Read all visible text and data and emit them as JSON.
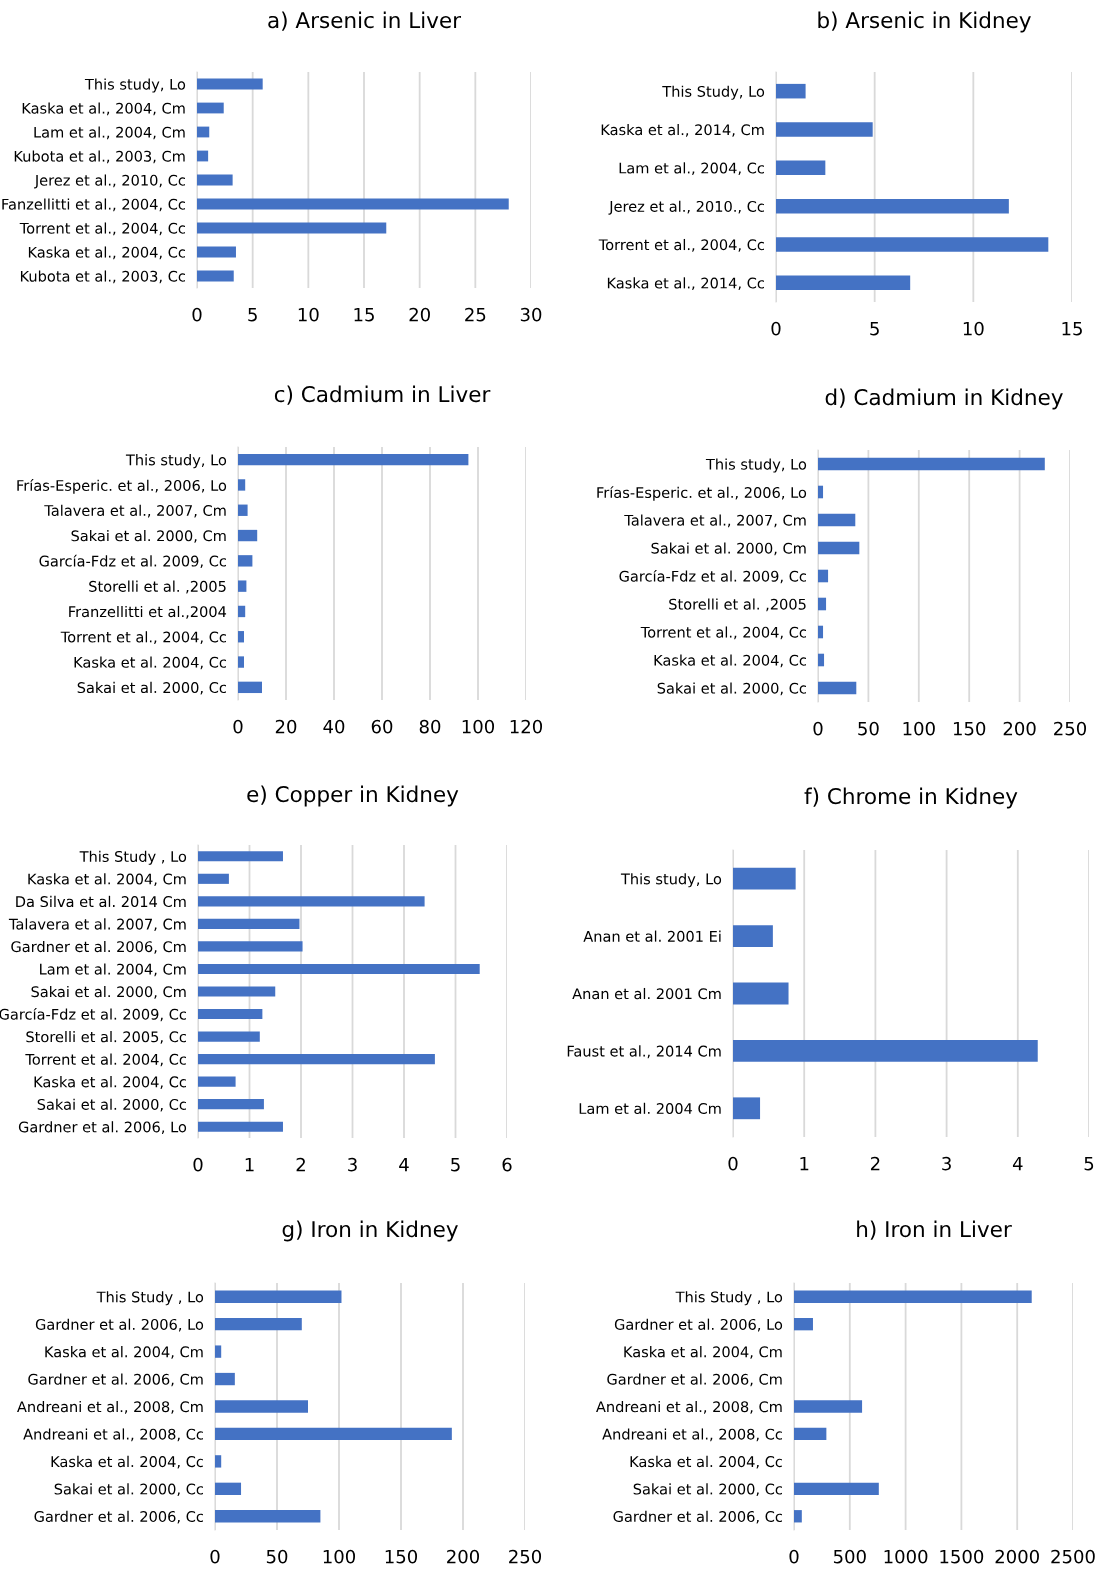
{
  "chart_data": [
    {
      "type": "bar",
      "orientation": "horizontal",
      "title": "a) Arsenic in Liver",
      "categories": [
        "This study, Lo",
        "Kaska et al., 2004, Cm",
        "Lam et al., 2004, Cm",
        "Kubota et al., 2003, Cm",
        "Jerez et al., 2010, Cc",
        "Fanzellitti et al., 2004, Cc",
        "Torrent et al., 2004, Cc",
        "Kaska et al., 2004, Cc",
        "Kubota et al., 2003, Cc"
      ],
      "values": [
        5.9,
        2.4,
        1.1,
        1.0,
        3.2,
        28,
        17,
        3.5,
        3.3
      ],
      "color": "#4472c4",
      "xlim": [
        0,
        30
      ],
      "xticks": [
        0,
        5,
        10,
        15,
        20,
        25,
        30
      ],
      "grid": "x"
    },
    {
      "type": "bar",
      "orientation": "horizontal",
      "title": "b) Arsenic in Kidney",
      "categories": [
        "This Study, Lo",
        "Kaska et al., 2014, Cm",
        "Lam et al., 2004, Cc",
        "Jerez et al., 2010., Cc",
        "Torrent et al., 2004, Cc",
        "Kaska et al., 2014, Cc"
      ],
      "values": [
        1.5,
        4.9,
        2.5,
        11.8,
        13.8,
        6.8
      ],
      "color": "#4472c4",
      "xlim": [
        0,
        15
      ],
      "xticks": [
        0,
        5,
        10,
        15
      ],
      "grid": "x"
    },
    {
      "type": "bar",
      "orientation": "horizontal",
      "title": "c) Cadmium in Liver",
      "categories": [
        "This study, Lo",
        "Frías-Esperic. et al., 2006, Lo",
        "Talavera et al., 2007, Cm",
        "Sakai et al. 2000, Cm",
        "García-Fdz et al. 2009, Cc",
        "Storelli et al. ,2005",
        "Franzellitti et al.,2004",
        "Torrent et al., 2004, Cc",
        "Kaska et al. 2004, Cc",
        "Sakai et al. 2000, Cc"
      ],
      "values": [
        96,
        3,
        4,
        8,
        6,
        3.5,
        3,
        2.5,
        2.5,
        10
      ],
      "color": "#4472c4",
      "xlim": [
        0,
        120
      ],
      "xticks": [
        0,
        20,
        40,
        60,
        80,
        100,
        120
      ],
      "grid": "x"
    },
    {
      "type": "bar",
      "orientation": "horizontal",
      "title": "d) Cadmium in Kidney",
      "categories": [
        "This study, Lo",
        "Frías-Esperic. et al., 2006, Lo",
        "Talavera et al., 2007, Cm",
        "Sakai et al. 2000, Cm",
        "García-Fdz et al. 2009, Cc",
        "Storelli et al. ,2005",
        "Torrent et al., 2004, Cc",
        "Kaska et al. 2004, Cc",
        "Sakai et al. 2000, Cc"
      ],
      "values": [
        225,
        5,
        37,
        41,
        10,
        8,
        5,
        6,
        38
      ],
      "color": "#4472c4",
      "xlim": [
        0,
        250
      ],
      "xticks": [
        0,
        50,
        100,
        150,
        200,
        250
      ],
      "grid": "x"
    },
    {
      "type": "bar",
      "orientation": "horizontal",
      "title": "e) Copper in Kidney",
      "categories": [
        "This Study , Lo",
        "Kaska et al. 2004, Cm",
        "Da Silva et al. 2014 Cm",
        "Talavera et al. 2007, Cm",
        "Gardner et al. 2006, Cm",
        "Lam et al. 2004, Cm",
        "Sakai et al. 2000, Cm",
        "García-Fdz et al. 2009, Cc",
        "Storelli et al. 2005, Cc",
        "Torrent et al. 2004, Cc",
        "Kaska et al. 2004, Cc",
        "Sakai et al. 2000, Cc",
        "Gardner et al. 2006, Lo"
      ],
      "values": [
        1.65,
        0.6,
        4.4,
        1.97,
        2.03,
        5.47,
        1.5,
        1.25,
        1.2,
        4.6,
        0.73,
        1.28,
        1.65
      ],
      "color": "#4472c4",
      "xlim": [
        0,
        6
      ],
      "xticks": [
        0,
        1,
        2,
        3,
        4,
        5,
        6
      ],
      "grid": "x"
    },
    {
      "type": "bar",
      "orientation": "horizontal",
      "title": "f) Chrome in Kidney",
      "categories": [
        "This study, Lo",
        "Anan et al. 2001 Ei",
        "Anan et al. 2001 Cm",
        "Faust et al., 2014 Cm",
        "Lam et al. 2004 Cm"
      ],
      "values": [
        0.88,
        0.56,
        0.78,
        4.28,
        0.38
      ],
      "color": "#4472c4",
      "xlim": [
        0,
        5
      ],
      "xticks": [
        0,
        1,
        2,
        3,
        4,
        5
      ],
      "grid": "x"
    },
    {
      "type": "bar",
      "orientation": "horizontal",
      "title": "g) Iron in Kidney",
      "categories": [
        "This Study , Lo",
        "Gardner et al. 2006, Lo",
        "Kaska et al. 2004, Cm",
        "Gardner et al. 2006, Cm",
        "Andreani et al., 2008, Cm",
        "Andreani et al., 2008, Cc",
        "Kaska et al. 2004, Cc",
        "Sakai et al. 2000, Cc",
        "Gardner et al. 2006, Cc"
      ],
      "values": [
        102,
        70,
        5,
        16,
        75,
        191,
        5,
        21,
        85
      ],
      "color": "#4472c4",
      "xlim": [
        0,
        250
      ],
      "xticks": [
        0,
        50,
        100,
        150,
        200,
        250
      ],
      "grid": "x"
    },
    {
      "type": "bar",
      "orientation": "horizontal",
      "title": "h) Iron in Liver",
      "categories": [
        "This Study , Lo",
        "Gardner et al. 2006, Lo",
        "Kaska et al. 2004, Cm",
        "Gardner et al. 2006, Cm",
        "Andreani et al., 2008, Cm",
        "Andreani et al., 2008, Cc",
        "Kaska et al. 2004, Cc",
        "Sakai et al. 2000, Cc",
        "Gardner et al. 2006, Cc"
      ],
      "values": [
        2130,
        170,
        null,
        null,
        610,
        290,
        null,
        760,
        70
      ],
      "color": "#4472c4",
      "xlim": [
        0,
        2500
      ],
      "xticks": [
        0,
        500,
        1000,
        1500,
        2000,
        2500
      ],
      "grid": "x"
    }
  ]
}
